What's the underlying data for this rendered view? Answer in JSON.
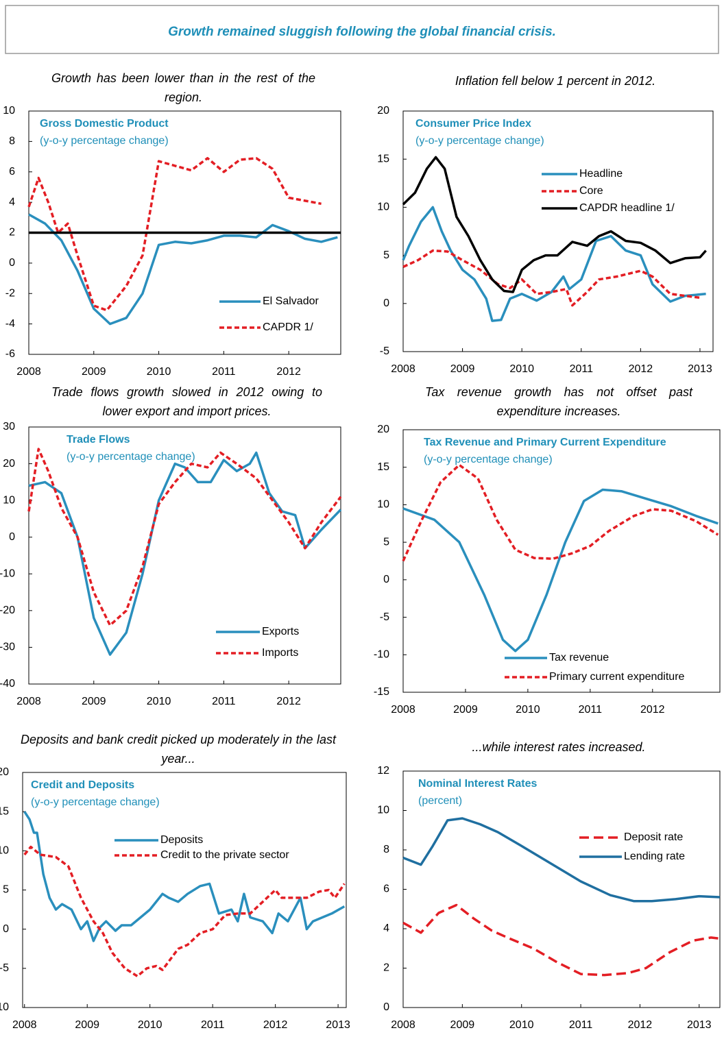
{
  "header": {
    "title": "Growth remained sluggish following the global financial crisis."
  },
  "chart_data": [
    {
      "type": "line",
      "caption": "Growth has been lower than in the rest of the region.",
      "title": "Gross Domestic Product",
      "units": "(y-o-y percentage change)",
      "xlim": [
        2008,
        2012.8
      ],
      "xticks": [
        2008,
        2009,
        2010,
        2011,
        2012
      ],
      "ylim": [
        -6,
        10
      ],
      "yticks": [
        -6,
        -4,
        -2,
        0,
        2,
        4,
        6,
        8,
        10
      ],
      "series": [
        {
          "name": "El Salvador",
          "color": "#2a8fbd",
          "style": "solid",
          "x": [
            2008,
            2008.25,
            2008.5,
            2008.75,
            2009,
            2009.25,
            2009.5,
            2009.75,
            2010,
            2010.25,
            2010.5,
            2010.75,
            2011,
            2011.25,
            2011.5,
            2011.75,
            2012,
            2012.25,
            2012.5,
            2012.75
          ],
          "values": [
            3.2,
            2.6,
            1.5,
            -0.5,
            -3.0,
            -4.0,
            -3.6,
            -2.0,
            1.2,
            1.4,
            1.3,
            1.5,
            1.8,
            1.8,
            1.7,
            2.5,
            2.1,
            1.6,
            1.4,
            1.7
          ]
        },
        {
          "name": "CAPDR 1/",
          "color": "#e31e24",
          "style": "dashed",
          "x": [
            2008,
            2008.15,
            2008.3,
            2008.45,
            2008.6,
            2008.75,
            2009,
            2009.2,
            2009.5,
            2009.75,
            2010,
            2010.25,
            2010.5,
            2010.75,
            2011,
            2011.25,
            2011.5,
            2011.75,
            2012,
            2012.25,
            2012.5
          ],
          "values": [
            3.7,
            5.6,
            4.0,
            2.0,
            2.6,
            0.5,
            -2.8,
            -3.1,
            -1.5,
            0.5,
            6.7,
            6.4,
            6.1,
            6.9,
            6.0,
            6.8,
            6.9,
            6.2,
            4.3,
            4.1,
            3.9
          ]
        },
        {
          "color": "#000000",
          "style": "solid",
          "x": [
            2008,
            2012.8
          ],
          "values": [
            2,
            2
          ]
        }
      ]
    },
    {
      "type": "line",
      "caption": "Inflation fell below 1 percent in 2012.",
      "title": "Consumer Price Index",
      "units": "(y-o-y percentage change)",
      "xlim": [
        2008,
        2013.22
      ],
      "xticks": [
        2008,
        2009,
        2010,
        2011,
        2012,
        2013
      ],
      "ylim": [
        -5,
        20
      ],
      "yticks": [
        -5,
        0,
        5,
        10,
        15,
        20
      ],
      "series": [
        {
          "name": "Headline",
          "color": "#2a8fbd",
          "style": "solid",
          "x": [
            2008,
            2008.1,
            2008.3,
            2008.5,
            2008.65,
            2008.8,
            2009,
            2009.2,
            2009.4,
            2009.5,
            2009.65,
            2009.8,
            2010,
            2010.25,
            2010.5,
            2010.7,
            2010.8,
            2011,
            2011.25,
            2011.5,
            2011.75,
            2012,
            2012.2,
            2012.5,
            2012.75,
            2013.1
          ],
          "values": [
            4.5,
            6,
            8.5,
            10,
            7.5,
            5.5,
            3.5,
            2.5,
            0.5,
            -1.8,
            -1.7,
            0.5,
            1,
            0.3,
            1.2,
            2.8,
            1.5,
            2.5,
            6.5,
            7,
            5.5,
            5,
            2,
            0.2,
            0.8,
            1
          ]
        },
        {
          "name": "Core",
          "color": "#e31e24",
          "style": "dashed",
          "x": [
            2008,
            2008.25,
            2008.5,
            2008.75,
            2009,
            2009.3,
            2009.6,
            2009.8,
            2010,
            2010.25,
            2010.5,
            2010.75,
            2010.85,
            2011.1,
            2011.3,
            2011.6,
            2012,
            2012.2,
            2012.5,
            2012.75,
            2013
          ],
          "values": [
            3.8,
            4.5,
            5.5,
            5.4,
            4.5,
            3.5,
            2,
            1.6,
            2.5,
            1,
            1.2,
            1.5,
            -0.2,
            1.2,
            2.5,
            2.8,
            3.4,
            2.8,
            1,
            0.8,
            0.6
          ]
        },
        {
          "name": "CAPDR headline 1/",
          "color": "#000000",
          "style": "solid",
          "x": [
            2008,
            2008.2,
            2008.4,
            2008.55,
            2008.7,
            2008.9,
            2009.1,
            2009.3,
            2009.5,
            2009.7,
            2009.85,
            2010,
            2010.2,
            2010.4,
            2010.6,
            2010.85,
            2011.1,
            2011.3,
            2011.5,
            2011.75,
            2012,
            2012.25,
            2012.5,
            2012.75,
            2013,
            2013.1
          ],
          "values": [
            10.3,
            11.5,
            14,
            15.2,
            14,
            9,
            7,
            4.5,
            2.5,
            1.3,
            1.2,
            3.5,
            4.5,
            5,
            5,
            6.4,
            6,
            7,
            7.5,
            6.5,
            6.3,
            5.5,
            4.2,
            4.7,
            4.8,
            5.5
          ]
        }
      ]
    },
    {
      "type": "line",
      "caption": "Trade flows growth slowed in 2012 owing to lower export and import prices.",
      "title": "Trade Flows",
      "units": "(y-o-y percentage change)",
      "xlim": [
        2008,
        2012.8
      ],
      "xticks": [
        2008,
        2009,
        2010,
        2011,
        2012
      ],
      "ylim": [
        -40,
        30
      ],
      "yticks": [
        -40,
        -30,
        -20,
        -10,
        0,
        10,
        20,
        30
      ],
      "series": [
        {
          "name": "Exports",
          "color": "#2a8fbd",
          "style": "solid",
          "x": [
            2008,
            2008.25,
            2008.5,
            2008.75,
            2009,
            2009.25,
            2009.5,
            2009.75,
            2010,
            2010.25,
            2010.4,
            2010.6,
            2010.8,
            2011,
            2011.2,
            2011.4,
            2011.5,
            2011.7,
            2011.9,
            2012.1,
            2012.25,
            2012.5,
            2012.8
          ],
          "values": [
            14,
            15,
            12,
            0,
            -22,
            -32,
            -26,
            -10,
            10,
            20,
            19,
            15,
            15,
            21,
            18,
            20,
            23,
            12,
            7,
            6,
            -3,
            2,
            7.5
          ]
        },
        {
          "name": "Imports",
          "color": "#e31e24",
          "style": "dashed",
          "x": [
            2008,
            2008.15,
            2008.3,
            2008.5,
            2008.75,
            2009,
            2009.25,
            2009.5,
            2009.75,
            2010,
            2010.25,
            2010.5,
            2010.75,
            2010.95,
            2011.2,
            2011.5,
            2011.75,
            2012,
            2012.25,
            2012.5,
            2012.8
          ],
          "values": [
            7,
            24,
            18,
            8,
            0,
            -15,
            -24,
            -20,
            -8,
            9,
            15,
            20,
            19,
            23,
            20,
            16,
            10,
            4,
            -3,
            4,
            11
          ]
        }
      ]
    },
    {
      "type": "line",
      "caption": "Tax revenue growth has not offset past expenditure increases.",
      "title": "Tax Revenue and Primary Current Expenditure",
      "units": "(y-o-y percentage change)",
      "xlim": [
        2008,
        2013.08
      ],
      "xticks": [
        2008,
        2009,
        2010,
        2011,
        2012
      ],
      "ylim": [
        -15,
        20
      ],
      "yticks": [
        -15,
        -10,
        -5,
        0,
        5,
        10,
        15,
        20
      ],
      "series": [
        {
          "name": "Tax revenue",
          "color": "#2a8fbd",
          "style": "solid",
          "x": [
            2008,
            2008.5,
            2008.9,
            2009.3,
            2009.6,
            2009.8,
            2010,
            2010.3,
            2010.6,
            2010.9,
            2011.2,
            2011.5,
            2011.9,
            2012.3,
            2012.7,
            2013.05
          ],
          "values": [
            9.5,
            8,
            5,
            -2,
            -8,
            -9.5,
            -8,
            -2,
            5,
            10.5,
            12,
            11.8,
            10.8,
            9.8,
            8.5,
            7.5
          ]
        },
        {
          "name": "Primary current expenditure",
          "color": "#e31e24",
          "style": "dashed",
          "x": [
            2008,
            2008.3,
            2008.6,
            2008.9,
            2009.2,
            2009.5,
            2009.8,
            2010.1,
            2010.4,
            2010.7,
            2011,
            2011.3,
            2011.7,
            2012,
            2012.3,
            2012.7,
            2013.05
          ],
          "values": [
            2.5,
            8,
            13,
            15.3,
            13.5,
            8,
            4,
            2.9,
            2.8,
            3.5,
            4.5,
            6.5,
            8.5,
            9.4,
            9.2,
            7.8,
            6
          ]
        }
      ]
    },
    {
      "type": "line",
      "caption": "Deposits and bank credit picked up moderately in the last year...",
      "title": "Credit and Deposits",
      "units": "(y-o-y percentage change)",
      "xlim": [
        2007.97,
        2013.13
      ],
      "xticks": [
        2008,
        2009,
        2010,
        2011,
        2012,
        2013
      ],
      "ylim": [
        -10,
        20
      ],
      "yticks": [
        -10,
        -5,
        0,
        5,
        10,
        15,
        20
      ],
      "series": [
        {
          "name": "Deposits",
          "color": "#2a8fbd",
          "style": "solid",
          "x": [
            2008,
            2008.08,
            2008.15,
            2008.2,
            2008.3,
            2008.4,
            2008.5,
            2008.6,
            2008.75,
            2008.9,
            2009,
            2009.1,
            2009.2,
            2009.3,
            2009.45,
            2009.55,
            2009.7,
            2010,
            2010.2,
            2010.3,
            2010.45,
            2010.6,
            2010.8,
            2010.95,
            2011.1,
            2011.3,
            2011.4,
            2011.5,
            2011.6,
            2011.8,
            2011.95,
            2012.05,
            2012.2,
            2012.4,
            2012.5,
            2012.6,
            2012.75,
            2012.9,
            2013.1
          ],
          "values": [
            15,
            14,
            12.3,
            12.3,
            7,
            4,
            2.5,
            3.2,
            2.5,
            0,
            1,
            -1.5,
            0.2,
            1,
            -0.2,
            0.5,
            0.5,
            2.5,
            4.5,
            4,
            3.5,
            4.5,
            5.5,
            5.8,
            2,
            2.5,
            1,
            4.5,
            1.5,
            1,
            -0.5,
            2,
            1,
            4,
            0,
            1,
            1.5,
            2,
            2.9
          ]
        },
        {
          "name": "Credit to the private sector",
          "color": "#e31e24",
          "style": "dashed",
          "x": [
            2008,
            2008.1,
            2008.25,
            2008.5,
            2008.7,
            2008.9,
            2009.1,
            2009.25,
            2009.4,
            2009.6,
            2009.8,
            2009.95,
            2010.1,
            2010.2,
            2010.45,
            2010.6,
            2010.8,
            2011,
            2011.2,
            2011.4,
            2011.6,
            2011.8,
            2012,
            2012.1,
            2012.3,
            2012.5,
            2012.7,
            2012.85,
            2012.95,
            2013.1
          ],
          "values": [
            9.5,
            10.5,
            9.5,
            9.2,
            8,
            4,
            1,
            -0.5,
            -3,
            -5,
            -6,
            -5,
            -4.7,
            -5.2,
            -2.5,
            -2,
            -0.5,
            0,
            1.8,
            2,
            2,
            3.5,
            5,
            4,
            4,
            4,
            4.8,
            5,
            4,
            5.8
          ]
        }
      ]
    },
    {
      "type": "line",
      "caption": "...while interest rates increased.",
      "title": "Nominal  Interest Rates",
      "units": "(percent)",
      "xlim": [
        2008,
        2013.35
      ],
      "xticks": [
        2008,
        2009,
        2010,
        2011,
        2012,
        2013
      ],
      "ylim": [
        0,
        12
      ],
      "yticks": [
        0,
        2,
        4,
        6,
        8,
        10,
        12
      ],
      "series": [
        {
          "name": "Deposit rate",
          "color": "#e31e24",
          "style": "longdash",
          "x": [
            2008,
            2008.3,
            2008.6,
            2008.9,
            2009.2,
            2009.5,
            2009.8,
            2010.2,
            2010.6,
            2011,
            2011.4,
            2011.8,
            2012.1,
            2012.5,
            2012.9,
            2013.2,
            2013.35
          ],
          "values": [
            4.3,
            3.8,
            4.8,
            5.2,
            4.5,
            3.9,
            3.5,
            3,
            2.3,
            1.7,
            1.65,
            1.75,
            2,
            2.8,
            3.4,
            3.55,
            3.5
          ]
        },
        {
          "name": "Lending rate",
          "color": "#1f6fa0",
          "style": "solid",
          "x": [
            2008,
            2008.3,
            2008.5,
            2008.75,
            2009,
            2009.3,
            2009.6,
            2010,
            2010.5,
            2011,
            2011.5,
            2011.9,
            2012.2,
            2012.6,
            2013,
            2013.35
          ],
          "values": [
            7.6,
            7.25,
            8.2,
            9.5,
            9.6,
            9.3,
            8.9,
            8.2,
            7.3,
            6.4,
            5.7,
            5.4,
            5.4,
            5.5,
            5.65,
            5.6
          ]
        }
      ]
    }
  ]
}
